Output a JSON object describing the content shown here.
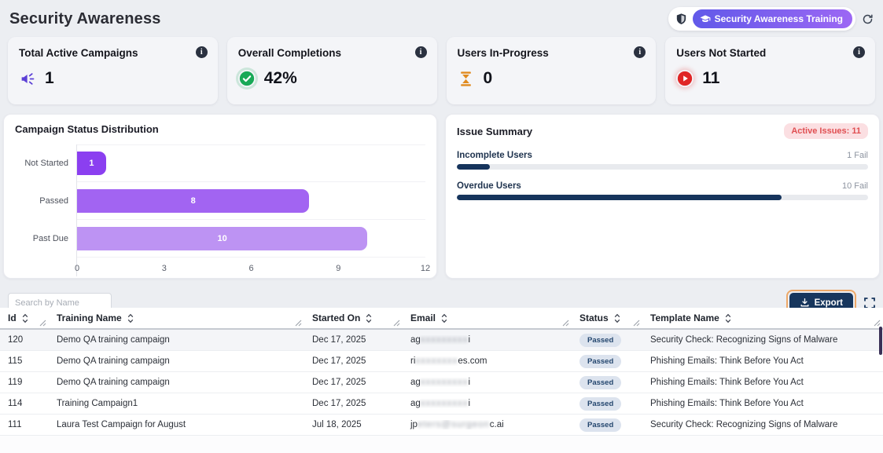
{
  "page": {
    "title": "Security Awareness"
  },
  "toolbar": {
    "training_button_label": "Security Awareness Training",
    "accent_gradient": [
      "#6159e9",
      "#9c67f4"
    ]
  },
  "stat_cards": [
    {
      "title": "Total Active Campaigns",
      "value": "1",
      "icon": "megaphone-icon",
      "icon_color": "#5b3fd6"
    },
    {
      "title": "Overall Completions",
      "value": "42%",
      "icon": "check-circle-icon",
      "icon_color": "#18a957"
    },
    {
      "title": "Users In-Progress",
      "value": "0",
      "icon": "hourglass-icon",
      "icon_color": "#e08a1e"
    },
    {
      "title": "Users Not Started",
      "value": "11",
      "icon": "play-circle-icon",
      "icon_color": "#e02626"
    }
  ],
  "chart_data": {
    "type": "bar",
    "orientation": "horizontal",
    "title": "Campaign Status Distribution",
    "categories": [
      "Not Started",
      "Passed",
      "Past Due"
    ],
    "values": [
      1,
      8,
      10
    ],
    "bar_colors": [
      "#8b3ff0",
      "#a264f2",
      "#bd93f3"
    ],
    "xlim": [
      0,
      12
    ],
    "xticks": [
      0,
      3,
      6,
      9,
      12
    ],
    "grid": "row-separators",
    "value_labels": "inside-center"
  },
  "issue_summary": {
    "title": "Issue Summary",
    "badge": "Active Issues: 11",
    "bar_color": "#16345c",
    "items": [
      {
        "label": "Incomplete Users",
        "status": "1 Fail",
        "percent": 8
      },
      {
        "label": "Overdue Users",
        "status": "10 Fail",
        "percent": 79
      }
    ]
  },
  "table": {
    "search_placeholder": "Search by Name",
    "export_label": "Export",
    "columns": [
      "Id",
      "Training Name",
      "Started On",
      "Email",
      "Status",
      "Template Name"
    ],
    "rows": [
      {
        "id": "120",
        "training_name": "Demo QA training campaign",
        "started_on": "Dec 17, 2025",
        "email": {
          "prefix": "ag",
          "redacted": "xxxxxxxxx",
          "suffix": "i"
        },
        "status": "Passed",
        "template_name": "Security Check: Recognizing Signs of Malware"
      },
      {
        "id": "115",
        "training_name": "Demo QA training campaign",
        "started_on": "Dec 17, 2025",
        "email": {
          "prefix": "ri",
          "redacted": "xxxxxxxx",
          "suffix": "es.com"
        },
        "status": "Passed",
        "template_name": "Phishing Emails: Think Before You Act"
      },
      {
        "id": "119",
        "training_name": "Demo QA training campaign",
        "started_on": "Dec 17, 2025",
        "email": {
          "prefix": "ag",
          "redacted": "xxxxxxxxx",
          "suffix": "i"
        },
        "status": "Passed",
        "template_name": "Phishing Emails: Think Before You Act"
      },
      {
        "id": "114",
        "training_name": "Training Campaign1",
        "started_on": "Dec 17, 2025",
        "email": {
          "prefix": "ag",
          "redacted": "xxxxxxxxx",
          "suffix": "i"
        },
        "status": "Passed",
        "template_name": "Phishing Emails: Think Before You Act"
      },
      {
        "id": "111",
        "training_name": "Laura Test Campaign for August",
        "started_on": "Jul 18, 2025",
        "email": {
          "prefix": "jp",
          "redacted": "eters@surgeon",
          "suffix": "c.ai"
        },
        "status": "Passed",
        "template_name": "Security Check: Recognizing Signs of Malware"
      }
    ]
  },
  "colors": {
    "page_bg": "#eceef2",
    "card_bg": "#f4f5f8",
    "navy": "#17365d",
    "export_focus_ring": "#eda868",
    "badge_bg": "#fbdfe2",
    "badge_text": "#e04f52",
    "status_pill_bg": "#dce3ee"
  }
}
